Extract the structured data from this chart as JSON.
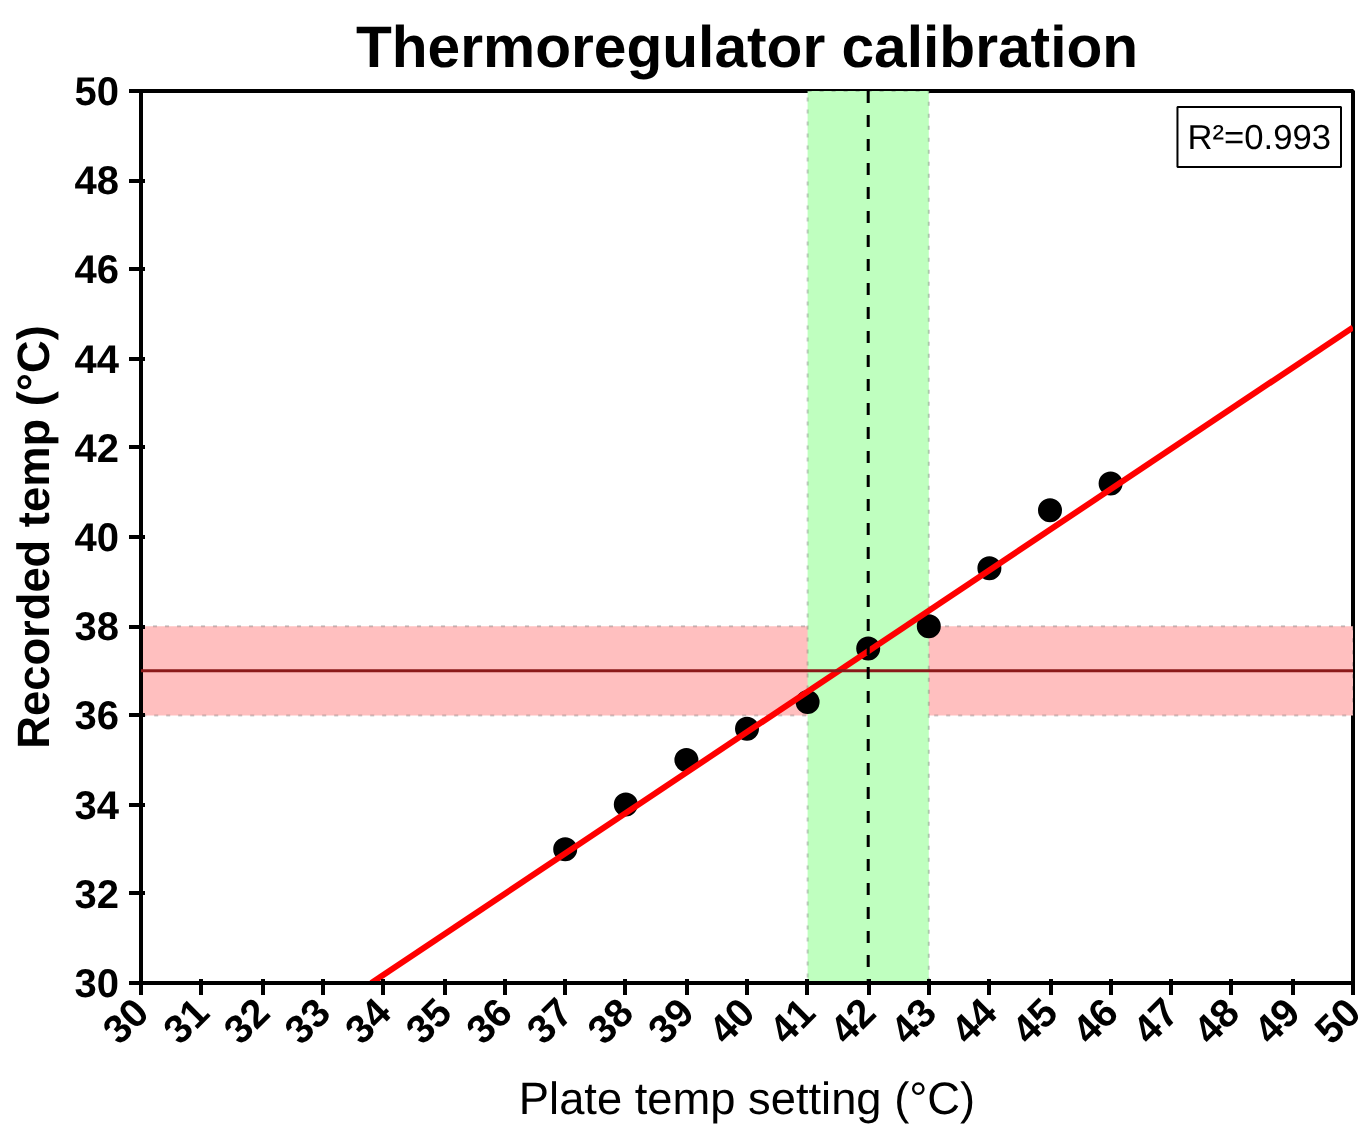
{
  "chart_data": {
    "type": "scatter",
    "title": "Thermoregulator calibration",
    "xlabel": "Plate temp setting (°C)",
    "ylabel": "Recorded temp (°C)",
    "x": [
      37,
      38,
      39,
      40,
      41,
      42,
      43,
      44,
      45,
      46
    ],
    "series": [
      {
        "color": "#000000",
        "marker": "circle",
        "values": [
          33,
          34,
          35,
          35.7,
          36.3,
          37.5,
          38,
          39.3,
          40.6,
          41.2
        ]
      },
      {
        "type": "line",
        "color": "#ff0000",
        "x": [
          33.8,
          50
        ],
        "values": [
          30,
          44.7
        ],
        "line_style": "solid"
      }
    ],
    "xlim": [
      30,
      50
    ],
    "xticks": [
      30,
      31,
      32,
      33,
      34,
      35,
      36,
      37,
      38,
      39,
      40,
      41,
      42,
      43,
      44,
      45,
      46,
      47,
      48,
      49,
      50
    ],
    "ylim": [
      30,
      50
    ],
    "yticks": [
      30,
      32,
      34,
      36,
      38,
      40,
      42,
      44,
      46,
      48,
      50
    ],
    "bands": [
      {
        "axis": "y",
        "from": 36,
        "to": 38,
        "color": "#ffbfbf"
      },
      {
        "axis": "x",
        "from": 41,
        "to": 43,
        "color": "#bfffbf"
      }
    ],
    "ref_lines": [
      {
        "axis": "y",
        "value": 37,
        "color": "#8b1a1a",
        "line_style": "solid"
      },
      {
        "axis": "x",
        "value": 42,
        "color": "#000000",
        "line_style": "dashed"
      }
    ],
    "annotations": [
      "R²=0.993"
    ],
    "grid": false
  }
}
